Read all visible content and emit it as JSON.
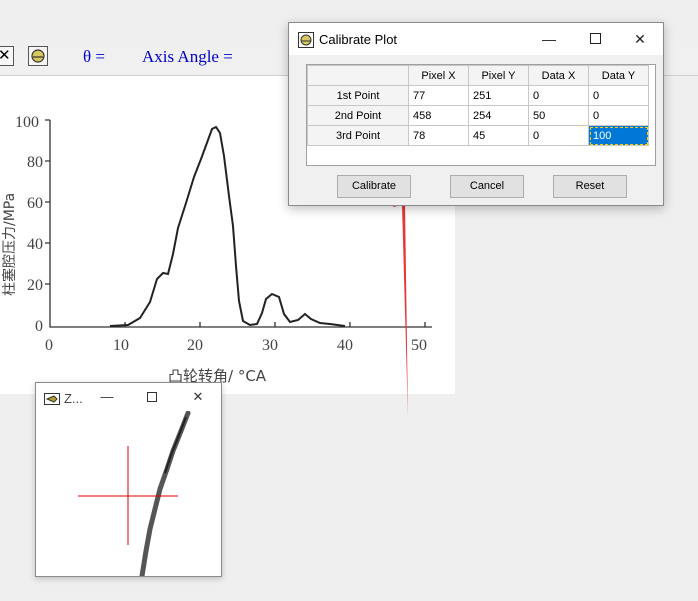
{
  "toolbar": {
    "close_glyph": "✕",
    "theta_label": "θ =",
    "axis_angle_label": "Axis Angle ="
  },
  "plot": {
    "y_label": "柱塞腔压力/MPa",
    "x_label": "凸轮转角/ °CA",
    "y_ticks": [
      "0",
      "20",
      "40",
      "60",
      "80",
      "100"
    ],
    "x_ticks": [
      "0",
      "10",
      "20",
      "30",
      "40",
      "50"
    ]
  },
  "dialog": {
    "title": "Calibrate Plot",
    "columns": [
      "",
      "Pixel X",
      "Pixel Y",
      "Data X",
      "Data Y"
    ],
    "rows": [
      {
        "name": "1st Point",
        "cells": [
          "77",
          "251",
          "0",
          "0"
        ]
      },
      {
        "name": "2nd Point",
        "cells": [
          "458",
          "254",
          "50",
          "0"
        ]
      },
      {
        "name": "3rd Point",
        "cells": [
          "78",
          "45",
          "0",
          "100"
        ]
      }
    ],
    "buttons": {
      "calibrate": "Calibrate",
      "cancel": "Cancel",
      "reset": "Reset"
    }
  },
  "zoom": {
    "title": "Z..."
  },
  "colors": {
    "accent_blue": "#0000cc",
    "selection": "#0078d7",
    "annotation_arrow": "#e83535",
    "crosshair": "#dd0000"
  }
}
